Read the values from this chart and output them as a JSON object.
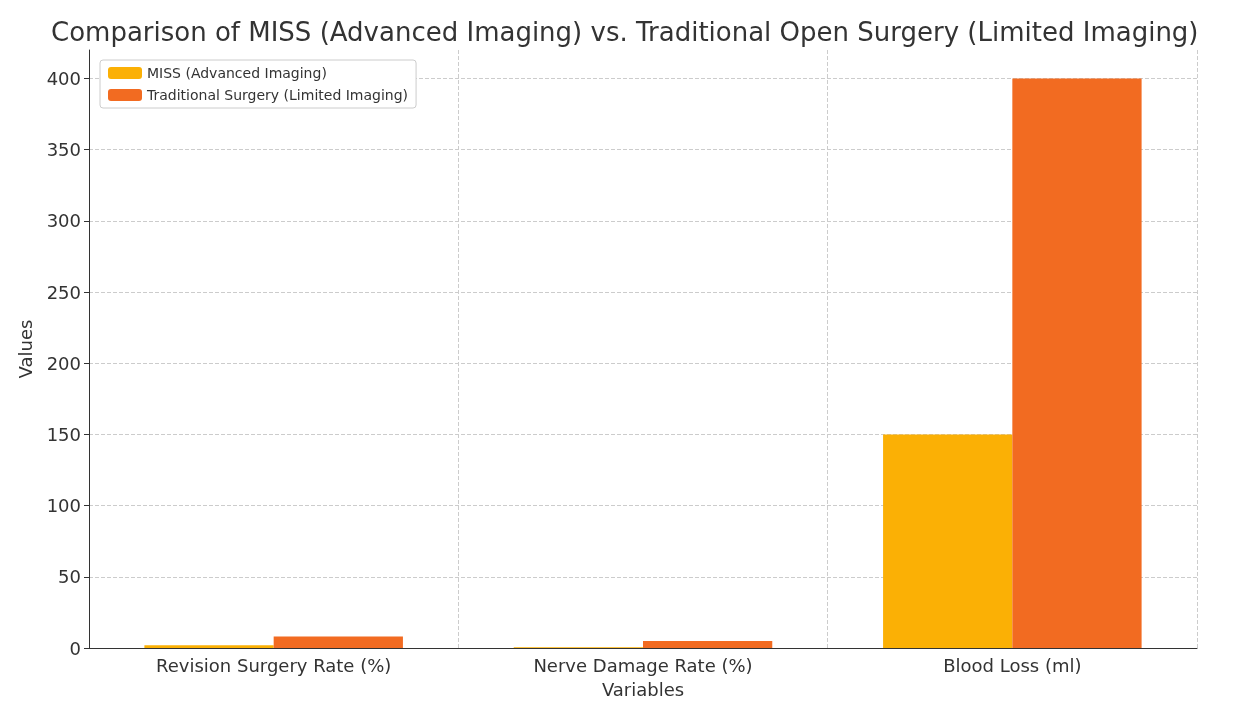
{
  "chart_data": {
    "type": "bar",
    "title": "Comparison of MISS (Advanced Imaging) vs. Traditional Open Surgery (Limited Imaging)",
    "xlabel": "Variables",
    "ylabel": "Values",
    "categories": [
      "Revision Surgery Rate (%)",
      "Nerve Damage Rate (%)",
      "Blood Loss (ml)"
    ],
    "series": [
      {
        "name": "MISS (Advanced Imaging)",
        "color": "#fbb005",
        "values": [
          2,
          0.5,
          150
        ]
      },
      {
        "name": "Traditional Surgery (Limited Imaging)",
        "color": "#f26b21",
        "values": [
          8,
          5,
          400
        ]
      }
    ],
    "ylim": [
      0,
      420
    ],
    "yticks": [
      0,
      50,
      100,
      150,
      200,
      250,
      300,
      350,
      400
    ],
    "grid": true,
    "legend": "top left"
  }
}
